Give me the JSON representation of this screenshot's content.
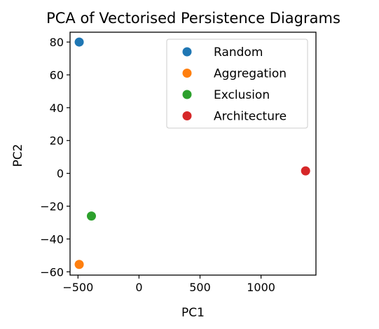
{
  "chart_data": {
    "type": "scatter",
    "title": "PCA of Vectorised Persistence Diagrams",
    "xlabel": "PC1",
    "ylabel": "PC2",
    "xlim": [
      -565,
      1450
    ],
    "ylim": [
      -62,
      86
    ],
    "xticks": [
      {
        "value": -500,
        "label": "−500"
      },
      {
        "value": 0,
        "label": "0"
      },
      {
        "value": 500,
        "label": "500"
      },
      {
        "value": 1000,
        "label": "1000"
      }
    ],
    "yticks": [
      {
        "value": -60,
        "label": "−60"
      },
      {
        "value": -40,
        "label": "−40"
      },
      {
        "value": -20,
        "label": "−20"
      },
      {
        "value": 0,
        "label": "0"
      },
      {
        "value": 20,
        "label": "20"
      },
      {
        "value": 40,
        "label": "40"
      },
      {
        "value": 60,
        "label": "60"
      },
      {
        "value": 80,
        "label": "80"
      }
    ],
    "grid": false,
    "legend_position": "top-right",
    "series": [
      {
        "name": "Random",
        "color": "#1f77b4",
        "x": [
          -490
        ],
        "y": [
          80
        ]
      },
      {
        "name": "Aggregation",
        "color": "#ff7f0e",
        "x": [
          -490
        ],
        "y": [
          -55.5
        ]
      },
      {
        "name": "Exclusion",
        "color": "#2ca02c",
        "x": [
          -390
        ],
        "y": [
          -26
        ]
      },
      {
        "name": "Architecture",
        "color": "#d62728",
        "x": [
          1365
        ],
        "y": [
          1.5
        ]
      }
    ]
  }
}
